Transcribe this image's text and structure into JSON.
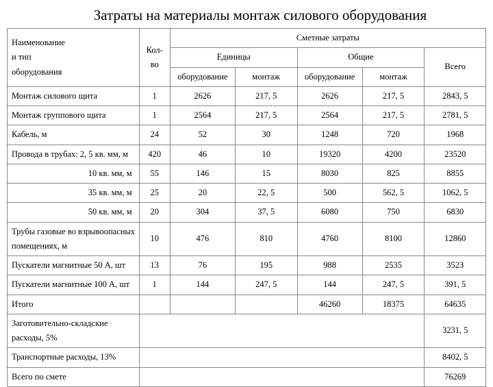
{
  "title": "Затраты на материалы монтаж силового оборудования",
  "headers": {
    "name1": "Наименование",
    "name2": "и тип",
    "name3": "оборудования",
    "qty1": "Кол-",
    "qty2": "во",
    "cost_top": "Сметные затраты",
    "unit": "Единицы",
    "total": "Общие",
    "equip": "оборудование",
    "mount": "монтаж",
    "all": "Всего"
  },
  "rows": [
    {
      "n": "Монтаж силового щита",
      "q": "1",
      "a": "2626",
      "b": "217, 5",
      "c": "2626",
      "d": "217, 5",
      "e": "2843, 5"
    },
    {
      "n": "Монтаж группового щита",
      "q": "1",
      "a": "2564",
      "b": "217, 5",
      "c": "2564",
      "d": "217, 5",
      "e": "2781, 5"
    },
    {
      "n": "Кабель, м",
      "q": "24",
      "a": "52",
      "b": "30",
      "c": "1248",
      "d": "720",
      "e": "1968"
    },
    {
      "n": "Провода в трубах: 2, 5 кв. мм, м",
      "q": "420",
      "a": "46",
      "b": "10",
      "c": "19320",
      "d": "4200",
      "e": "23520"
    },
    {
      "n": "10 кв. мм, м",
      "q": "55",
      "a": "146",
      "b": "15",
      "c": "8030",
      "d": "825",
      "e": "8855",
      "indent": true
    },
    {
      "n": "35 кв. мм, м",
      "q": "25",
      "a": "20",
      "b": "22, 5",
      "c": "500",
      "d": "562, 5",
      "e": "1062, 5",
      "indent": true
    },
    {
      "n": "50 кв. мм, м",
      "q": "20",
      "a": "304",
      "b": "37, 5",
      "c": "6080",
      "d": "750",
      "e": "6830",
      "indent": true
    },
    {
      "n": "Трубы газовые во взрывоопасных помещениях, м",
      "q": "10",
      "a": "476",
      "b": "810",
      "c": "4760",
      "d": "8100",
      "e": "12860"
    },
    {
      "n": "Пускатели магнитные 50 А, шт",
      "q": "13",
      "a": "76",
      "b": "195",
      "c": "988",
      "d": "2535",
      "e": "3523"
    },
    {
      "n": "Пускатели магнитные 100 А, шт",
      "q": "1",
      "a": "144",
      "b": "247, 5",
      "c": "144",
      "d": "247, 5",
      "e": "391, 5"
    }
  ],
  "footer": [
    {
      "n": "Итого",
      "c": "46260",
      "d": "18375",
      "e": "64635"
    },
    {
      "n": "Заготовительно-складские расходы, 5%",
      "e": "3231, 5"
    },
    {
      "n": "Транспортные расходы, 13%",
      "e": "8402, 5"
    },
    {
      "n": "Всего по смете",
      "e": "76269"
    }
  ]
}
